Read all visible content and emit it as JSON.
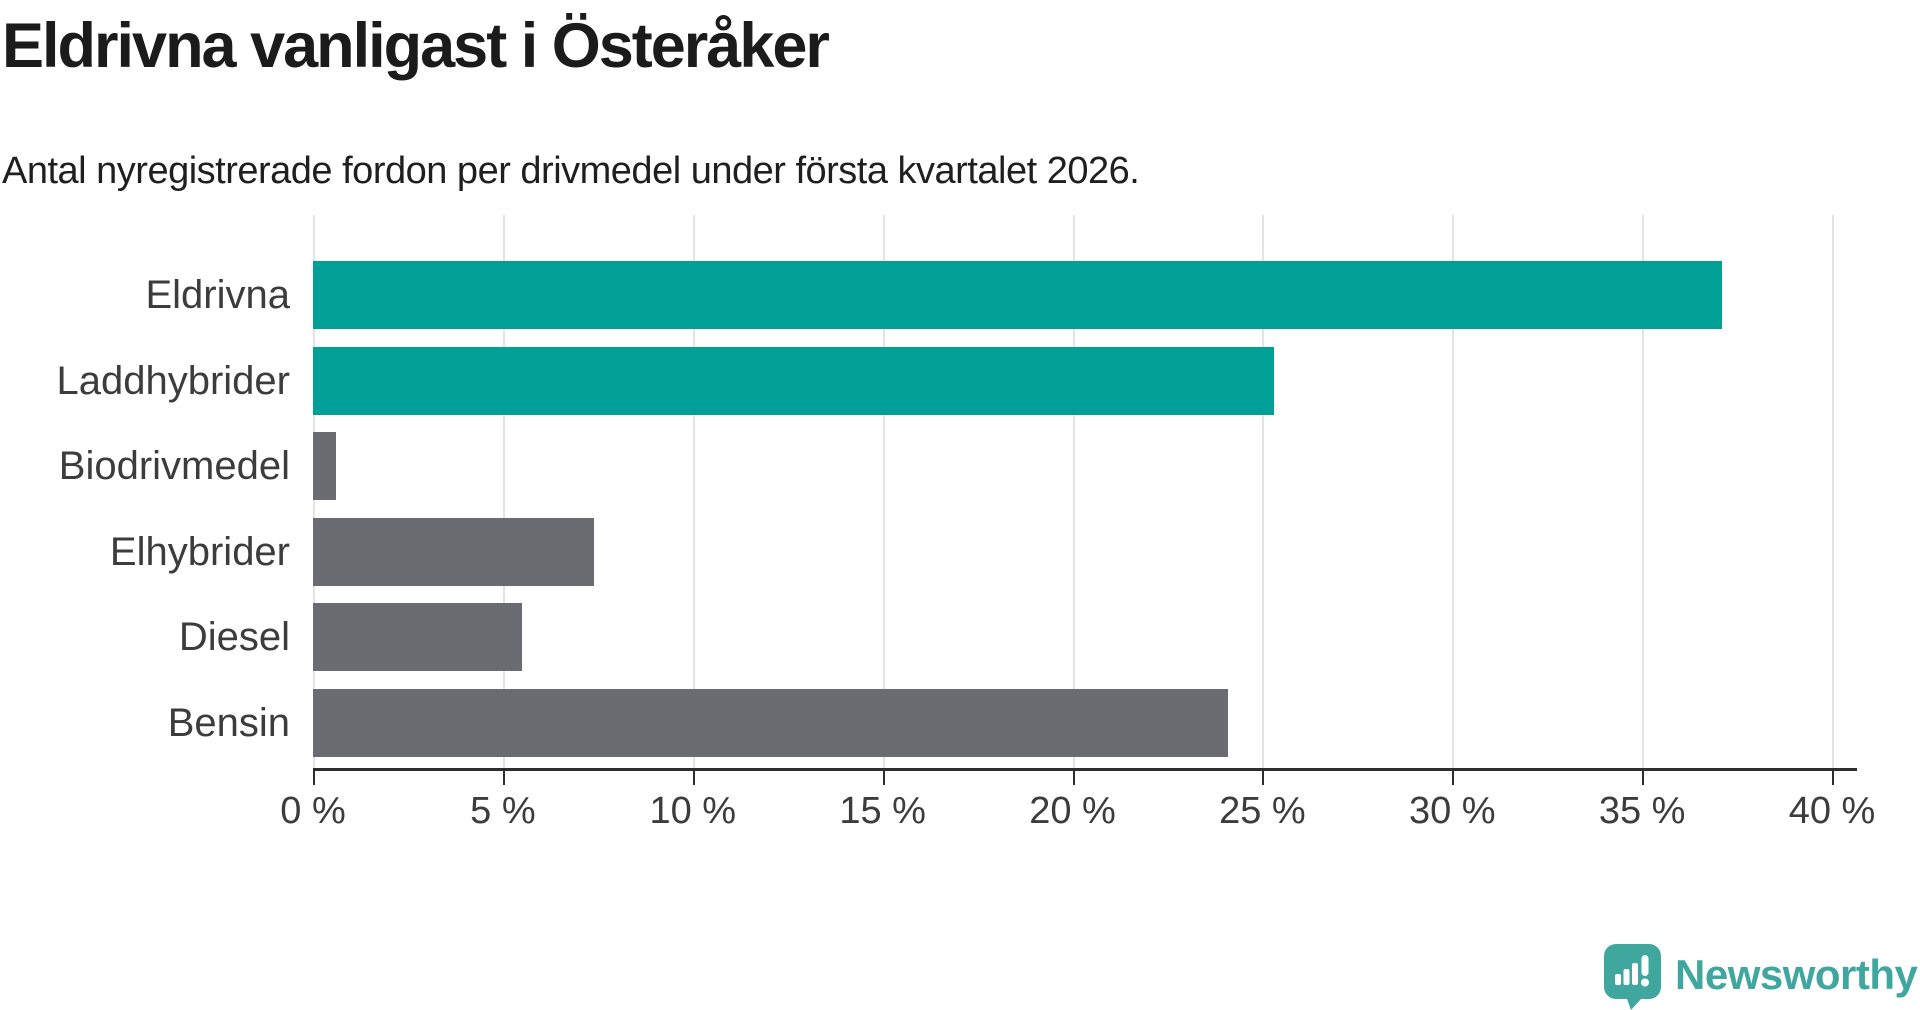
{
  "header": {
    "title": "Eldrivna vanligast i Österåker",
    "subtitle": "Antal nyregistrerade fordon per drivmedel under första kvartalet 2026."
  },
  "chart_data": {
    "type": "bar",
    "orientation": "horizontal",
    "categories": [
      "Eldrivna",
      "Laddhybrider",
      "Biodrivmedel",
      "Elhybrider",
      "Diesel",
      "Bensin"
    ],
    "values": [
      37.1,
      25.3,
      0.6,
      7.4,
      5.5,
      24.1
    ],
    "bar_colors": [
      "#00A096",
      "#00A096",
      "#6B6B72",
      "#6B6B72",
      "#6B6B72",
      "#6B6B72"
    ],
    "title": "Eldrivna vanligast i Österåker",
    "subtitle": "Antal nyregistrerade fordon per drivmedel under första kvartalet 2026.",
    "xlabel": "",
    "ylabel": "",
    "xlim": [
      0,
      40
    ],
    "x_tick_values": [
      0,
      5,
      10,
      15,
      20,
      25,
      30,
      35,
      40
    ],
    "x_tick_labels": [
      "0 %",
      "5 %",
      "10 %",
      "15 %",
      "20 %",
      "25 %",
      "30 %",
      "35 %",
      "40 %"
    ],
    "grid": true,
    "legend": false,
    "colors": {
      "highlight": "#00A096",
      "default": "#6B6B72",
      "gridline": "#e3e3e3",
      "axis": "#2d2d2d",
      "text": "#3c3c3c"
    }
  },
  "branding": {
    "logo_text": "Newsworthy",
    "logo_color": "#3FA79E",
    "logo_icon": "newsworthy-speech-bubble-chart-icon"
  }
}
